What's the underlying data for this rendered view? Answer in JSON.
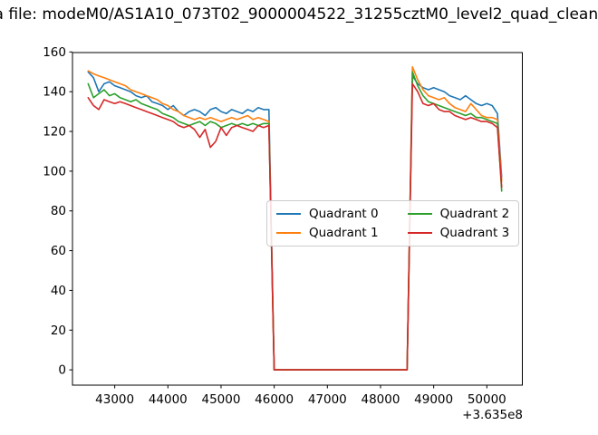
{
  "header": {
    "title_visible": "a file: modeM0/AS1A10_073T02_9000004522_31255cztM0_level2_quad_clean",
    "title_clipped": true
  },
  "chart_data": {
    "type": "line",
    "title": "a file: modeM0/AS1A10_073T02_9000004522_31255cztM0_level2_quad_clean",
    "xlabel": "",
    "ylabel": "",
    "x_offset_label": "+3.635e8",
    "grid": false,
    "legend_position": "center",
    "legend_ncol": 2,
    "xlim": [
      42205,
      50668
    ],
    "ylim": [
      -7.7,
      159.7
    ],
    "x_ticks": [
      43000,
      44000,
      45000,
      46000,
      47000,
      48000,
      49000,
      50000
    ],
    "y_ticks": [
      0,
      20,
      40,
      60,
      80,
      100,
      120,
      140,
      160
    ],
    "axis_color": "#000000",
    "x": [
      42500,
      42600,
      42700,
      42800,
      42900,
      43000,
      43100,
      43200,
      43300,
      43400,
      43500,
      43600,
      43700,
      43800,
      43900,
      44000,
      44100,
      44200,
      44300,
      44400,
      44500,
      44600,
      44700,
      44800,
      44900,
      45000,
      45100,
      45200,
      45300,
      45400,
      45500,
      45600,
      45700,
      45800,
      45900,
      46000,
      46100,
      46200,
      46300,
      46400,
      46500,
      46600,
      46700,
      46800,
      46900,
      47000,
      47100,
      47200,
      47300,
      47400,
      47500,
      47600,
      47700,
      47800,
      47900,
      48000,
      48100,
      48200,
      48300,
      48400,
      48500,
      48600,
      48700,
      48800,
      48900,
      49000,
      49100,
      49200,
      49300,
      49400,
      49500,
      49600,
      49700,
      49800,
      49900,
      50000,
      50100,
      50200,
      50280
    ],
    "series": [
      {
        "name": "Quadrant 0",
        "color": "#1f77b4",
        "values": [
          150,
          147,
          140,
          144,
          145,
          143,
          142,
          141,
          140,
          138,
          137,
          138,
          135,
          134,
          133,
          131,
          133,
          130,
          128,
          130,
          131,
          130,
          128,
          131,
          132,
          130,
          129,
          131,
          130,
          129,
          131,
          130,
          132,
          131,
          131,
          0,
          0,
          0,
          0,
          0,
          0,
          0,
          0,
          0,
          0,
          0,
          0,
          0,
          0,
          0,
          0,
          0,
          0,
          0,
          0,
          0,
          0,
          0,
          0,
          0,
          0,
          148,
          144,
          142,
          141,
          142,
          141,
          140,
          138,
          137,
          136,
          138,
          136,
          134,
          133,
          134,
          133,
          129,
          97
        ]
      },
      {
        "name": "Quadrant 1",
        "color": "#ff7f0e",
        "values": [
          150.5,
          149,
          148,
          147,
          146,
          145,
          144,
          143,
          141,
          140,
          139,
          138,
          137,
          136,
          134,
          133,
          131,
          130,
          128,
          127,
          126,
          127,
          126,
          127,
          126,
          125,
          126,
          127,
          126,
          127,
          128,
          126,
          127,
          126,
          125,
          0,
          0,
          0,
          0,
          0,
          0,
          0,
          0,
          0,
          0,
          0,
          0,
          0,
          0,
          0,
          0,
          0,
          0,
          0,
          0,
          0,
          0,
          0,
          0,
          0,
          0,
          152.5,
          146,
          141,
          138,
          137,
          136,
          137,
          134,
          132,
          131,
          130,
          134,
          131,
          128,
          127,
          127,
          126,
          95
        ]
      },
      {
        "name": "Quadrant 2",
        "color": "#2ca02c",
        "values": [
          144,
          137,
          139,
          141,
          138,
          139,
          137,
          136,
          135,
          136,
          134,
          133,
          132,
          131,
          129,
          128,
          127,
          125,
          124,
          123,
          124,
          125,
          123,
          125,
          124,
          122,
          123,
          124,
          123,
          124,
          123,
          124,
          123,
          124,
          124,
          0,
          0,
          0,
          0,
          0,
          0,
          0,
          0,
          0,
          0,
          0,
          0,
          0,
          0,
          0,
          0,
          0,
          0,
          0,
          0,
          0,
          0,
          0,
          0,
          0,
          0,
          150,
          143,
          138,
          135,
          134,
          133,
          132,
          131,
          130,
          129,
          128,
          129,
          127,
          127,
          126,
          125,
          124,
          90
        ]
      },
      {
        "name": "Quadrant 3",
        "color": "#d62728",
        "values": [
          137,
          133,
          131,
          136,
          135,
          134,
          135,
          134,
          133,
          132,
          131,
          130,
          129,
          128,
          127,
          126,
          125,
          123,
          122,
          123,
          121,
          117,
          121,
          112,
          115,
          122,
          118,
          122,
          123,
          122,
          121,
          120,
          123,
          122,
          123,
          0,
          0,
          0,
          0,
          0,
          0,
          0,
          0,
          0,
          0,
          0,
          0,
          0,
          0,
          0,
          0,
          0,
          0,
          0,
          0,
          0,
          0,
          0,
          0,
          0,
          0,
          144,
          140,
          134,
          133,
          134,
          131,
          130,
          130,
          128,
          127,
          126,
          127,
          126,
          125,
          125,
          124,
          122,
          92
        ]
      }
    ]
  }
}
